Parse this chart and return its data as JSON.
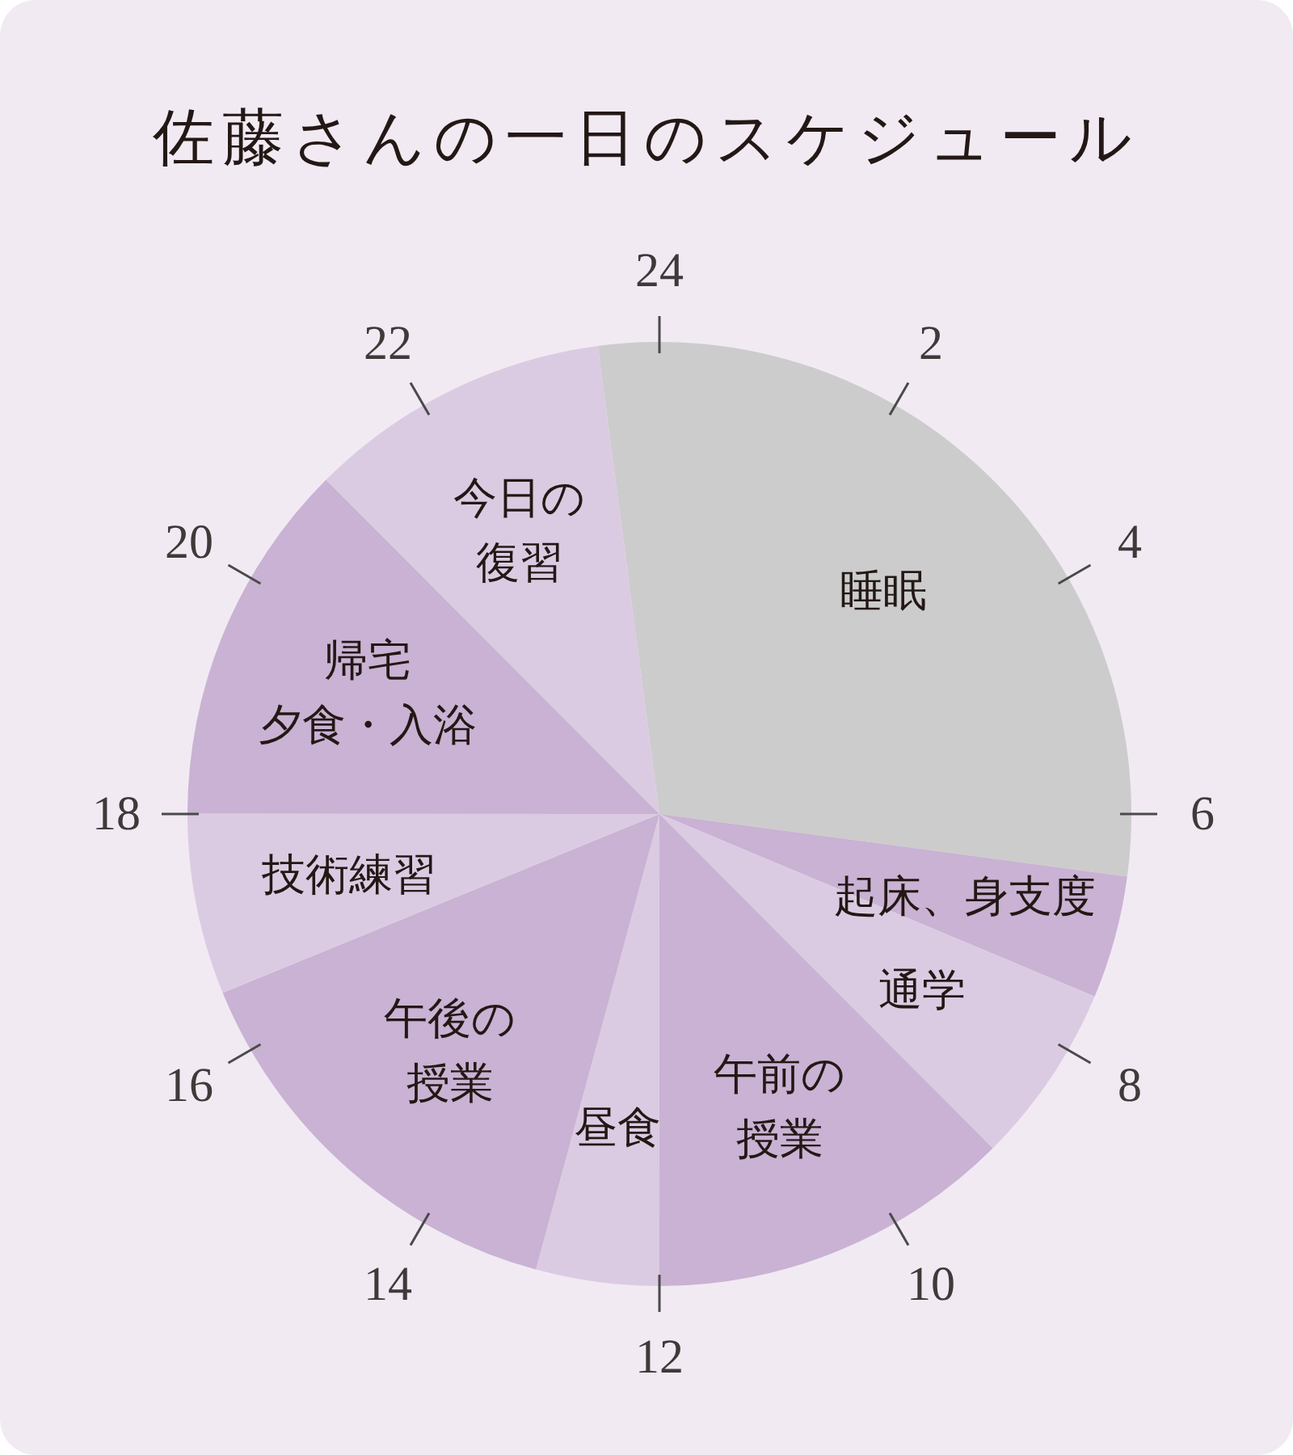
{
  "chart_data": {
    "type": "pie",
    "title": "佐藤さんの一日のスケジュール",
    "categories": [
      "睡眠",
      "起床、身支度",
      "通学",
      "午前の授業",
      "昼食",
      "午後の授業",
      "技術練習",
      "帰宅夕食・入浴",
      "今日の復習"
    ],
    "values": [
      29.2,
      4.2,
      6.2,
      12.5,
      4.2,
      14.6,
      6.2,
      12.5,
      10.4
    ],
    "colors": [
      "#cccccc",
      "#c9b2d3",
      "#dbcbe2",
      "#c9b2d3",
      "#dbcbe2",
      "#c9b2d3",
      "#dbcbe2",
      "#c9b2d3",
      "#dbcbe2"
    ],
    "annotations": [
      "24",
      "2",
      "4",
      "6",
      "8",
      "10",
      "12",
      "14",
      "16",
      "18",
      "20",
      "22"
    ]
  }
}
